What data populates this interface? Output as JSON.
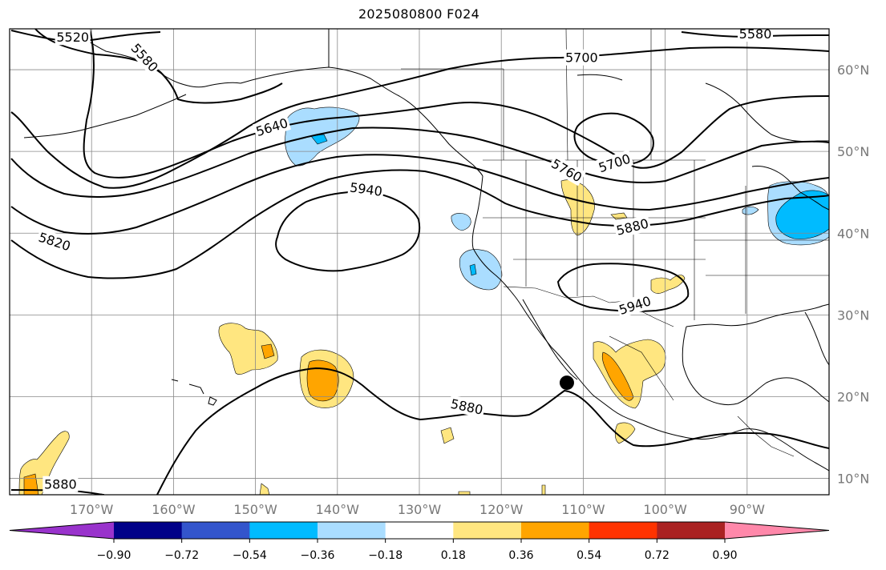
{
  "title": "2025080800 F024",
  "map": {
    "lon_range": [
      -180,
      -80
    ],
    "lat_range": [
      8,
      65
    ],
    "lon_ticks": [
      -170,
      -160,
      -150,
      -140,
      -130,
      -120,
      -110,
      -100,
      -90
    ],
    "lon_tick_labels": [
      "170°W",
      "160°W",
      "150°W",
      "140°W",
      "130°W",
      "120°W",
      "110°W",
      "100°W",
      "90°W"
    ],
    "lat_ticks": [
      10,
      20,
      30,
      40,
      50,
      60
    ],
    "lat_tick_labels": [
      "10°N",
      "20°N",
      "30°N",
      "40°N",
      "50°N",
      "60°N"
    ],
    "gridlines": true,
    "contour_labels": [
      {
        "text": "5520",
        "lon": -172.3,
        "lat": 64.0,
        "rot": 0
      },
      {
        "text": "5580",
        "lon": -163.5,
        "lat": 61.5,
        "rot": 48
      },
      {
        "text": "5580",
        "lon": -89.0,
        "lat": 64.4,
        "rot": 0
      },
      {
        "text": "5700",
        "lon": -110.2,
        "lat": 61.5,
        "rot": 0
      },
      {
        "text": "5640",
        "lon": -148.0,
        "lat": 53.0,
        "rot": -17
      },
      {
        "text": "5700",
        "lon": -106.2,
        "lat": 48.6,
        "rot": -18
      },
      {
        "text": "5760",
        "lon": -112.0,
        "lat": 47.7,
        "rot": 30
      },
      {
        "text": "5940",
        "lon": -136.5,
        "lat": 45.4,
        "rot": 8
      },
      {
        "text": "5880",
        "lon": -104.0,
        "lat": 40.8,
        "rot": -14
      },
      {
        "text": "5820",
        "lon": -174.5,
        "lat": 39.0,
        "rot": 18
      },
      {
        "text": "5940",
        "lon": -103.7,
        "lat": 31.2,
        "rot": -18
      },
      {
        "text": "5880",
        "lon": -124.2,
        "lat": 18.8,
        "rot": 12
      },
      {
        "text": "5880",
        "lon": -173.8,
        "lat": 9.3,
        "rot": 0
      }
    ],
    "marker": {
      "name": "storm-center",
      "lon": -112.0,
      "lat": 21.7,
      "color": "#000000"
    }
  },
  "colorbar": {
    "tick_labels": [
      "−0.90",
      "−0.72",
      "−0.54",
      "−0.36",
      "−0.18",
      "0.18",
      "0.36",
      "0.54",
      "0.72",
      "0.90"
    ],
    "colors": [
      "#9933cc",
      "#000088",
      "#3355cc",
      "#00bbff",
      "#aaddff",
      "#ffffff",
      "#ffe680",
      "#ffa500",
      "#ff3300",
      "#aa2222",
      "#ff88aa"
    ]
  }
}
